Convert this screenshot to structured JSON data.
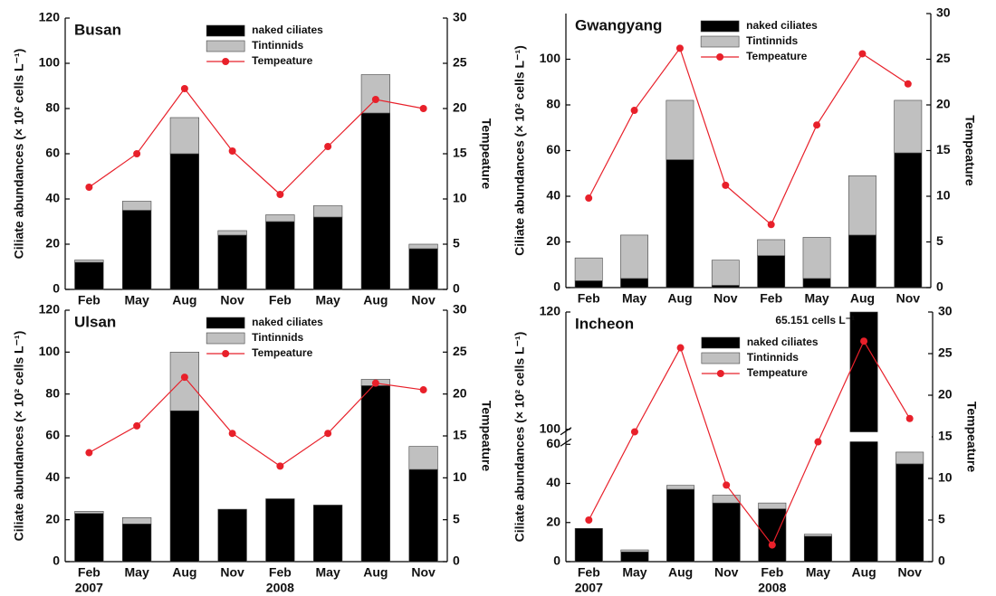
{
  "chart_data": [
    {
      "type": "bar",
      "title": "Busan",
      "stacked": true,
      "legend": "upper center",
      "categories": [
        "Feb",
        "May",
        "Aug",
        "Nov",
        "Feb",
        "May",
        "Aug",
        "Nov"
      ],
      "ylabel": "Ciliate abundances (× 10² cells L⁻¹)",
      "y2label": "Tempeature",
      "ylim": [
        0,
        120
      ],
      "yticks": [
        0,
        20,
        40,
        60,
        80,
        100,
        120
      ],
      "y2lim": [
        0,
        30
      ],
      "y2ticks": [
        0,
        5,
        10,
        15,
        20,
        25,
        30
      ],
      "series": [
        {
          "name": "naked ciliates",
          "type": "bar",
          "color": "#000000",
          "values": [
            12,
            35,
            60,
            24,
            30,
            32,
            78,
            18
          ]
        },
        {
          "name": "Tintinnids",
          "type": "bar",
          "color": "#c0c0c0",
          "values": [
            1,
            4,
            16,
            2,
            3,
            5,
            17,
            2
          ]
        },
        {
          "name": "Tempeature",
          "type": "line",
          "axis": "y2",
          "color": "#e8202a",
          "values": [
            11.3,
            15,
            22.2,
            15.3,
            10.5,
            15.8,
            21,
            20
          ]
        }
      ]
    },
    {
      "type": "bar",
      "title": "Gwangyang",
      "stacked": true,
      "legend": "upper center",
      "categories": [
        "Feb",
        "May",
        "Aug",
        "Nov",
        "Feb",
        "May",
        "Aug",
        "Nov"
      ],
      "ylabel": "Ciliate abundances (× 10² cells L⁻¹)",
      "y2label": "Tempeature",
      "ylim": [
        0,
        120
      ],
      "yticks": [
        0,
        20,
        40,
        60,
        80,
        100
      ],
      "y2lim": [
        0,
        30
      ],
      "y2ticks": [
        0,
        5,
        10,
        15,
        20,
        25,
        30
      ],
      "series": [
        {
          "name": "naked ciliates",
          "type": "bar",
          "color": "#000000",
          "values": [
            3,
            4,
            56,
            1,
            14,
            4,
            23,
            59
          ]
        },
        {
          "name": "Tintinnids",
          "type": "bar",
          "color": "#c0c0c0",
          "values": [
            10,
            19,
            26,
            11,
            7,
            18,
            26,
            23
          ]
        },
        {
          "name": "Tempeature",
          "type": "line",
          "axis": "y2",
          "color": "#e8202a",
          "values": [
            9.8,
            19.4,
            26.2,
            11.2,
            6.9,
            17.8,
            25.6,
            22.3
          ]
        }
      ]
    },
    {
      "type": "bar",
      "title": "Ulsan",
      "stacked": true,
      "legend": "upper center",
      "categories": [
        "Feb",
        "May",
        "Aug",
        "Nov",
        "Feb",
        "May",
        "Aug",
        "Nov"
      ],
      "year_labels": [
        "2007",
        "2008"
      ],
      "ylabel": "Ciliate abundances (× 10² cells L⁻¹)",
      "y2label": "Tempeature",
      "ylim": [
        0,
        120
      ],
      "yticks": [
        0,
        20,
        40,
        60,
        80,
        100,
        120
      ],
      "y2lim": [
        0,
        30
      ],
      "y2ticks": [
        0,
        5,
        10,
        15,
        20,
        25,
        30
      ],
      "series": [
        {
          "name": "naked ciliates",
          "type": "bar",
          "color": "#000000",
          "values": [
            23,
            18,
            72,
            25,
            30,
            27,
            84,
            44
          ]
        },
        {
          "name": "Tintinnids",
          "type": "bar",
          "color": "#c0c0c0",
          "values": [
            1,
            3,
            28,
            0,
            0,
            0,
            3,
            11
          ]
        },
        {
          "name": "Tempeature",
          "type": "line",
          "axis": "y2",
          "color": "#e8202a",
          "values": [
            13,
            16.2,
            22,
            15.3,
            11.4,
            15.3,
            21.3,
            20.5
          ]
        }
      ]
    },
    {
      "type": "bar",
      "title": "Incheon",
      "stacked": true,
      "legend": "upper center",
      "annotation": "65.151 cells L⁻¹",
      "categories": [
        "Feb",
        "May",
        "Aug",
        "Nov",
        "Feb",
        "May",
        "Aug",
        "Nov"
      ],
      "year_labels": [
        "2007",
        "2008"
      ],
      "ylabel": "Ciliate abundances (× 10² cells L⁻¹)",
      "y2label": "Tempeature",
      "ylim": [
        0,
        120
      ],
      "yticks": [
        0,
        20,
        40,
        60,
        100,
        120
      ],
      "axis_break": [
        60,
        100
      ],
      "y2lim": [
        0,
        30
      ],
      "y2ticks": [
        0,
        5,
        10,
        15,
        20,
        25,
        30
      ],
      "series": [
        {
          "name": "naked ciliates",
          "type": "bar",
          "color": "#000000",
          "values": [
            17,
            5,
            37,
            30,
            27,
            13,
            120,
            50
          ]
        },
        {
          "name": "Tintinnids",
          "type": "bar",
          "color": "#c0c0c0",
          "values": [
            0,
            1,
            2,
            4,
            3,
            1,
            0,
            6
          ]
        },
        {
          "name": "Tempeature",
          "type": "line",
          "axis": "y2",
          "color": "#e8202a",
          "values": [
            5,
            15.6,
            25.7,
            9.2,
            2,
            14.4,
            26.5,
            17.2
          ]
        }
      ]
    }
  ]
}
